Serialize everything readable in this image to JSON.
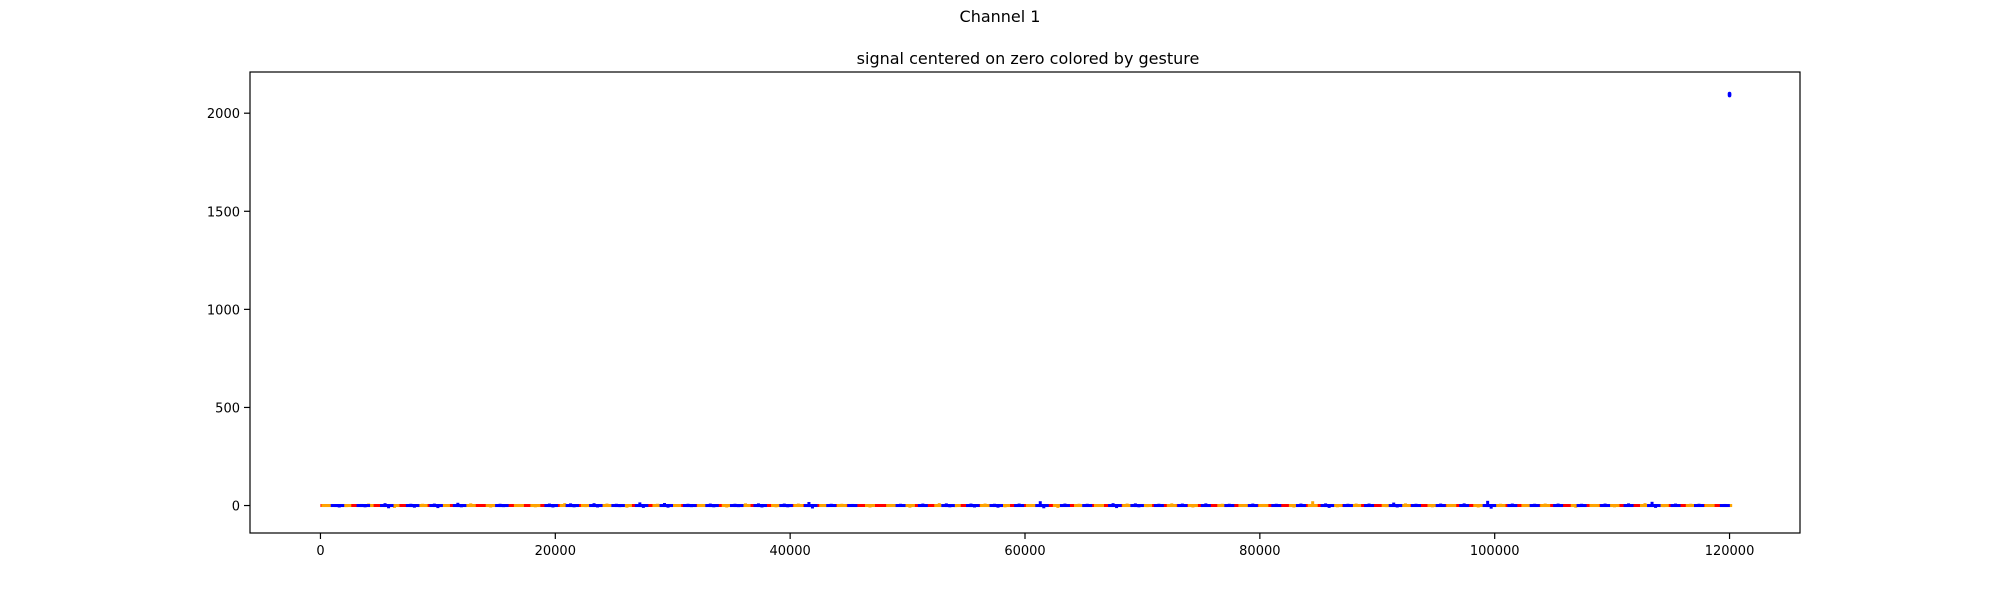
{
  "figure": {
    "suptitle": "Channel 1"
  },
  "chart_data": {
    "type": "scatter",
    "title": "signal centered on zero colored by gesture",
    "xlabel": "",
    "ylabel": "",
    "xlim": [
      -6000,
      126000
    ],
    "ylim": [
      -140,
      2210
    ],
    "xticks": [
      0,
      20000,
      40000,
      60000,
      80000,
      100000,
      120000
    ],
    "yticks": [
      0,
      500,
      1000,
      1500,
      2000
    ],
    "grid": false,
    "legend": "none",
    "series": [
      {
        "color": "#ff0000",
        "description_role": "baseline",
        "points": [
          [
            0,
            0
          ],
          [
            120000,
            0
          ]
        ]
      },
      {
        "color": "#ffa500",
        "description_role": "gesture-a",
        "points": [
          [
            500,
            3
          ],
          [
            2200,
            -8
          ],
          [
            4100,
            10
          ],
          [
            6300,
            -12
          ],
          [
            8700,
            9
          ],
          [
            10600,
            -7
          ],
          [
            12800,
            11
          ],
          [
            14500,
            -10
          ],
          [
            16900,
            8
          ],
          [
            18300,
            -9
          ],
          [
            20800,
            12
          ],
          [
            22600,
            -8
          ],
          [
            24400,
            10
          ],
          [
            26100,
            -11
          ],
          [
            28700,
            9
          ],
          [
            30300,
            -6
          ],
          [
            32500,
            8
          ],
          [
            34600,
            -10
          ],
          [
            36200,
            11
          ],
          [
            38800,
            -9
          ],
          [
            40700,
            10
          ],
          [
            42900,
            -7
          ],
          [
            44400,
            9
          ],
          [
            46800,
            -10
          ],
          [
            48600,
            8
          ],
          [
            50200,
            -11
          ],
          [
            52700,
            12
          ],
          [
            54100,
            -8
          ],
          [
            56600,
            10
          ],
          [
            58300,
            -9
          ],
          [
            60500,
            8
          ],
          [
            62800,
            -12
          ],
          [
            64600,
            9
          ],
          [
            66300,
            -7
          ],
          [
            68700,
            10
          ],
          [
            70400,
            -8
          ],
          [
            72500,
            11
          ],
          [
            74300,
            -10
          ],
          [
            76800,
            9
          ],
          [
            78600,
            -6
          ],
          [
            80300,
            8
          ],
          [
            82900,
            -10
          ],
          [
            84500,
            22
          ],
          [
            86600,
            -9
          ],
          [
            88200,
            10
          ],
          [
            90800,
            -8
          ],
          [
            92400,
            11
          ],
          [
            94700,
            -9
          ],
          [
            96300,
            8
          ],
          [
            98600,
            -10
          ],
          [
            100500,
            9
          ],
          [
            102700,
            -7
          ],
          [
            104300,
            10
          ],
          [
            106900,
            -11
          ],
          [
            108500,
            8
          ],
          [
            110200,
            -9
          ],
          [
            112800,
            12
          ],
          [
            114400,
            -8
          ],
          [
            116700,
            9
          ],
          [
            118300,
            -7
          ],
          [
            119800,
            5
          ]
        ]
      },
      {
        "color": "#0000ff",
        "description_role": "gesture-b",
        "points": [
          [
            1300,
            6
          ],
          [
            1600,
            -10
          ],
          [
            3500,
            8
          ],
          [
            3800,
            -9
          ],
          [
            5500,
            12
          ],
          [
            5800,
            -14
          ],
          [
            7700,
            9
          ],
          [
            8000,
            -11
          ],
          [
            9700,
            10
          ],
          [
            10000,
            -13
          ],
          [
            11700,
            14
          ],
          [
            12000,
            -9
          ],
          [
            15300,
            9
          ],
          [
            15600,
            -8
          ],
          [
            19500,
            10
          ],
          [
            19800,
            -10
          ],
          [
            21300,
            11
          ],
          [
            21600,
            -9
          ],
          [
            23300,
            12
          ],
          [
            23600,
            -10
          ],
          [
            25200,
            9
          ],
          [
            25500,
            -8
          ],
          [
            27200,
            16
          ],
          [
            27500,
            -12
          ],
          [
            29300,
            13
          ],
          [
            29600,
            -11
          ],
          [
            31300,
            9
          ],
          [
            31600,
            -8
          ],
          [
            33200,
            10
          ],
          [
            33500,
            -9
          ],
          [
            35300,
            9
          ],
          [
            35600,
            -8
          ],
          [
            37300,
            11
          ],
          [
            37600,
            -10
          ],
          [
            39500,
            10
          ],
          [
            39800,
            -9
          ],
          [
            41600,
            18
          ],
          [
            41900,
            -15
          ],
          [
            43500,
            9
          ],
          [
            45300,
            8
          ],
          [
            49400,
            9
          ],
          [
            51300,
            10
          ],
          [
            53300,
            11
          ],
          [
            53600,
            -9
          ],
          [
            55400,
            10
          ],
          [
            55700,
            -10
          ],
          [
            57400,
            9
          ],
          [
            57700,
            -11
          ],
          [
            59500,
            10
          ],
          [
            61300,
            22
          ],
          [
            61600,
            -14
          ],
          [
            63400,
            10
          ],
          [
            65300,
            9
          ],
          [
            67500,
            12
          ],
          [
            67800,
            -13
          ],
          [
            69400,
            11
          ],
          [
            69700,
            -9
          ],
          [
            71400,
            9
          ],
          [
            73400,
            10
          ],
          [
            75400,
            11
          ],
          [
            77400,
            9
          ],
          [
            79400,
            10
          ],
          [
            81400,
            9
          ],
          [
            83500,
            10
          ],
          [
            85600,
            11
          ],
          [
            85900,
            -12
          ],
          [
            87500,
            9
          ],
          [
            89300,
            10
          ],
          [
            91400,
            15
          ],
          [
            91700,
            -10
          ],
          [
            93300,
            9
          ],
          [
            95400,
            10
          ],
          [
            97400,
            11
          ],
          [
            99400,
            24
          ],
          [
            99700,
            -16
          ],
          [
            101500,
            10
          ],
          [
            103400,
            9
          ],
          [
            105400,
            10
          ],
          [
            107400,
            9
          ],
          [
            109400,
            10
          ],
          [
            111400,
            11
          ],
          [
            113400,
            19
          ],
          [
            113700,
            -12
          ],
          [
            115400,
            10
          ],
          [
            117400,
            9
          ],
          [
            119600,
            8
          ],
          [
            120000,
            2100
          ],
          [
            120000,
            2095
          ],
          [
            120000,
            2090
          ]
        ]
      }
    ]
  }
}
